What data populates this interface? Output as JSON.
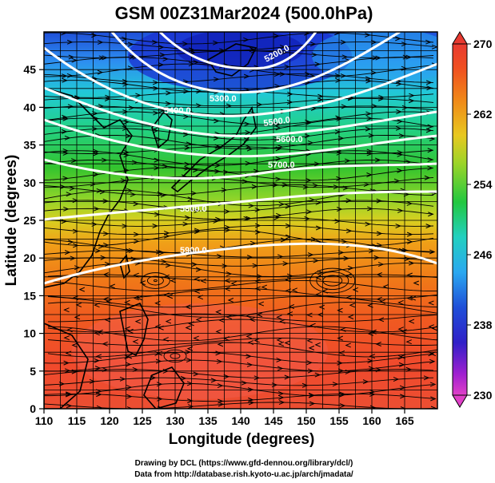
{
  "title": "GSM 00Z31Mar2024 (500.0hPa)",
  "xlabel": "Longitude (degrees)",
  "ylabel": "Latitude  (degrees)",
  "credits": [
    "Drawing by DCL (https://www.gfd-dennou.org/library/dcl/)",
    "Data from http://database.rish.kyoto-u.ac.jp/arch/jmadata/"
  ],
  "map_data": {
    "lon_range": [
      110,
      170
    ],
    "lat_range": [
      0,
      50
    ],
    "lon_ticks": [
      "110",
      "115",
      "120",
      "125",
      "130",
      "135",
      "140",
      "145",
      "150",
      "155",
      "160",
      "165"
    ],
    "lat_ticks": [
      "0",
      "5",
      "10",
      "15",
      "20",
      "25",
      "30",
      "35",
      "40",
      "45"
    ],
    "colorbar": {
      "ticks": [
        "230",
        "238",
        "246",
        "254",
        "262",
        "270"
      ],
      "range": [
        230,
        270
      ]
    },
    "contour_labels": [
      "5200.0",
      "5300.0",
      "5400.0",
      "5500.0",
      "5600.0",
      "5700.0",
      "5800.0",
      "5900.0"
    ]
  }
}
